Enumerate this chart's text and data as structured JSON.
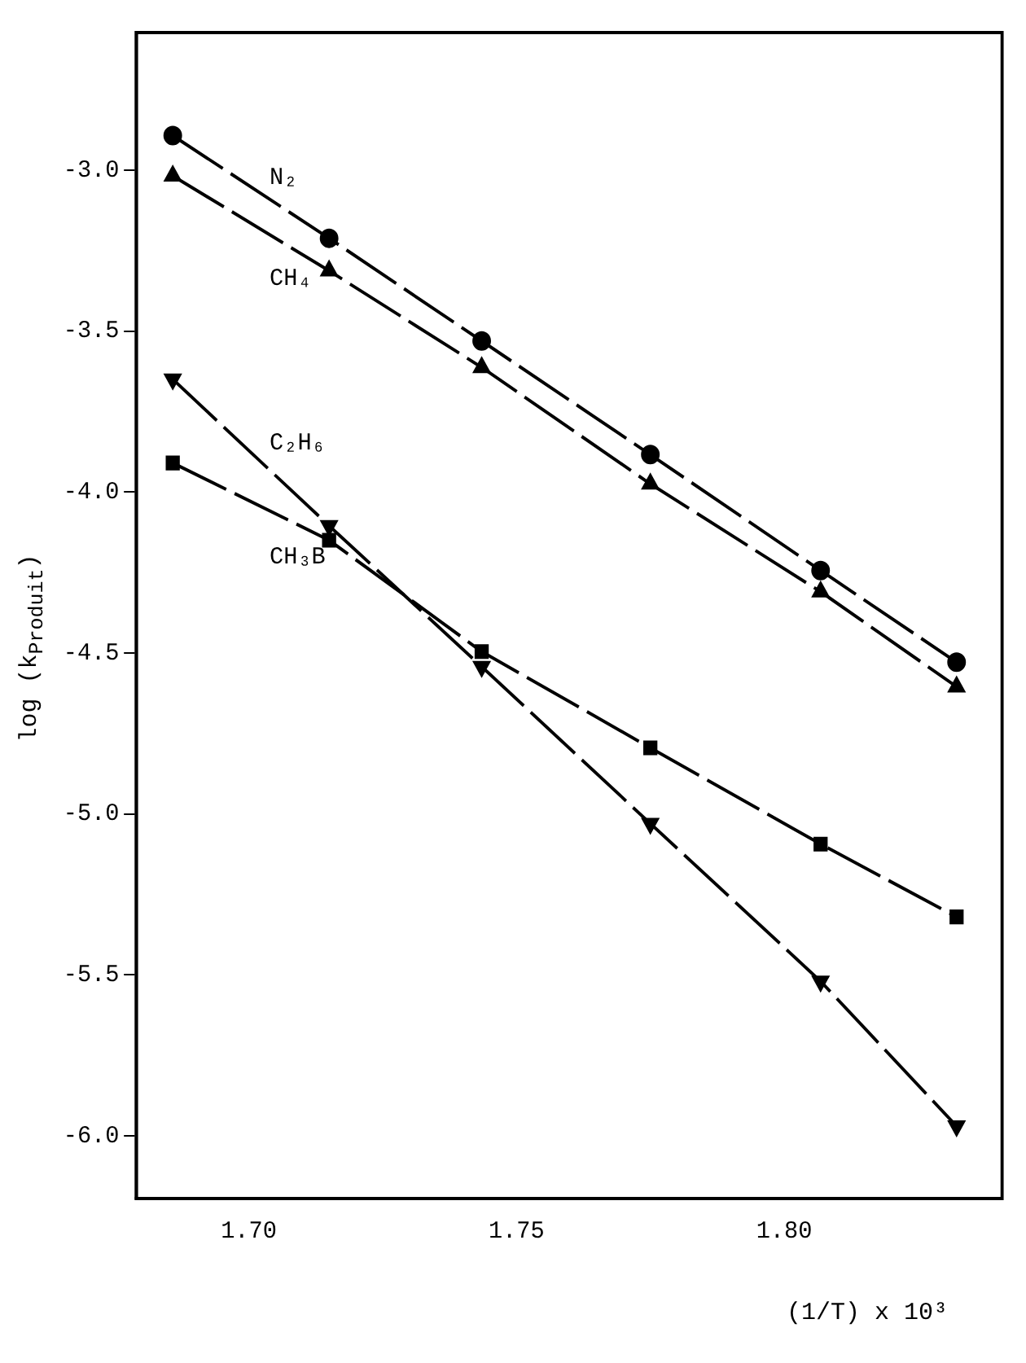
{
  "chart_data": {
    "type": "line",
    "xlabel": "(1/T) x 10³",
    "ylabel": "log (k$_{Produit}$)",
    "xlim": [
      1.679,
      1.8407
    ],
    "ylim": [
      -6.195,
      -2.573
    ],
    "xticks": [
      {
        "value": 1.7,
        "label": "1.70"
      },
      {
        "value": 1.75,
        "label": "1.75"
      },
      {
        "value": 1.8,
        "label": "1.80"
      }
    ],
    "yticks": [
      {
        "value": -3,
        "label": "-3.0"
      },
      {
        "value": -3.5,
        "label": "-3.5"
      },
      {
        "value": -4,
        "label": "-4.0"
      },
      {
        "value": -4.5,
        "label": "-4.5"
      },
      {
        "value": -5,
        "label": "-5.0"
      },
      {
        "value": -5.5,
        "label": "-5.5"
      },
      {
        "value": -6,
        "label": "-6.0"
      }
    ],
    "x": [
      1.6858,
      1.715,
      1.7435,
      1.775,
      1.8068,
      1.8322
    ],
    "grid": false,
    "legend": false,
    "line_style": "dashed",
    "series": [
      {
        "name": "N₂",
        "color": "#000000",
        "marker": "circle",
        "values": [
          -2.893,
          -3.212,
          -3.531,
          -3.884,
          -4.244,
          -4.529
        ]
      },
      {
        "name": "CH₄",
        "color": "#000000",
        "marker": "triangle",
        "values": [
          -3.018,
          -3.313,
          -3.613,
          -3.975,
          -4.31,
          -4.605
        ]
      },
      {
        "name": "C₂H₆",
        "color": "#000000",
        "marker": "triangle-down",
        "values": [
          -3.65,
          -4.105,
          -4.543,
          -5.03,
          -5.52,
          -5.97
        ]
      },
      {
        "name": "CH₃B",
        "color": "#000000",
        "marker": "square",
        "values": [
          -3.91,
          -4.15,
          -4.496,
          -4.795,
          -5.094,
          -5.32
        ]
      }
    ]
  }
}
